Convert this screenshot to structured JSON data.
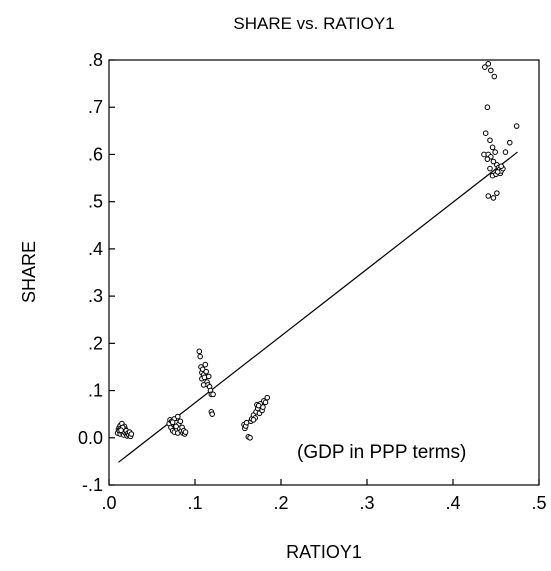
{
  "chart_data": {
    "type": "scatter",
    "title": "SHARE vs. RATIOY1",
    "xlabel": "RATIOY1",
    "ylabel": "SHARE",
    "annotation": "(GDP in PPP terms)",
    "xlim": [
      0.0,
      0.5
    ],
    "ylim": [
      -0.1,
      0.8
    ],
    "x_ticks": [
      {
        "value": 0.0,
        "label": ".0"
      },
      {
        "value": 0.1,
        "label": ".1"
      },
      {
        "value": 0.2,
        "label": ".2"
      },
      {
        "value": 0.3,
        "label": ".3"
      },
      {
        "value": 0.4,
        "label": ".4"
      },
      {
        "value": 0.5,
        "label": ".5"
      }
    ],
    "y_ticks": [
      {
        "value": -0.1,
        "label": "-.1"
      },
      {
        "value": 0.0,
        "label": "0.0"
      },
      {
        "value": 0.1,
        "label": ".1"
      },
      {
        "value": 0.2,
        "label": ".2"
      },
      {
        "value": 0.3,
        "label": ".3"
      },
      {
        "value": 0.4,
        "label": ".4"
      },
      {
        "value": 0.5,
        "label": ".5"
      },
      {
        "value": 0.6,
        "label": ".6"
      },
      {
        "value": 0.7,
        "label": ".7"
      },
      {
        "value": 0.8,
        "label": ".8"
      }
    ],
    "grid": false,
    "marker": "hollow-circle",
    "fit_line": {
      "x": [
        0.011,
        0.475
      ],
      "y": [
        -0.052,
        0.605
      ]
    },
    "points": [
      [
        0.01,
        0.01
      ],
      [
        0.011,
        0.018
      ],
      [
        0.012,
        0.022
      ],
      [
        0.012,
        0.014
      ],
      [
        0.013,
        0.026
      ],
      [
        0.013,
        0.008
      ],
      [
        0.014,
        0.02
      ],
      [
        0.015,
        0.012
      ],
      [
        0.015,
        0.03
      ],
      [
        0.016,
        0.016
      ],
      [
        0.017,
        0.006
      ],
      [
        0.018,
        0.024
      ],
      [
        0.018,
        0.012
      ],
      [
        0.019,
        0.018
      ],
      [
        0.02,
        0.008
      ],
      [
        0.02,
        0.015
      ],
      [
        0.021,
        0.004
      ],
      [
        0.022,
        0.01
      ],
      [
        0.023,
        0.006
      ],
      [
        0.024,
        0.012
      ],
      [
        0.025,
        0.003
      ],
      [
        0.026,
        0.008
      ],
      [
        0.016,
        0.022
      ],
      [
        0.014,
        0.016
      ],
      [
        0.07,
        0.03
      ],
      [
        0.071,
        0.038
      ],
      [
        0.072,
        0.022
      ],
      [
        0.073,
        0.035
      ],
      [
        0.074,
        0.015
      ],
      [
        0.075,
        0.028
      ],
      [
        0.076,
        0.04
      ],
      [
        0.076,
        0.012
      ],
      [
        0.077,
        0.025
      ],
      [
        0.078,
        0.032
      ],
      [
        0.079,
        0.018
      ],
      [
        0.08,
        0.045
      ],
      [
        0.08,
        0.01
      ],
      [
        0.081,
        0.028
      ],
      [
        0.082,
        0.02
      ],
      [
        0.083,
        0.035
      ],
      [
        0.084,
        0.014
      ],
      [
        0.085,
        0.022
      ],
      [
        0.086,
        0.01
      ],
      [
        0.087,
        0.015
      ],
      [
        0.088,
        0.008
      ],
      [
        0.089,
        0.012
      ],
      [
        0.078,
        0.024
      ],
      [
        0.074,
        0.033
      ],
      [
        0.105,
        0.183
      ],
      [
        0.106,
        0.172
      ],
      [
        0.107,
        0.15
      ],
      [
        0.108,
        0.138
      ],
      [
        0.108,
        0.125
      ],
      [
        0.109,
        0.145
      ],
      [
        0.11,
        0.133
      ],
      [
        0.111,
        0.128
      ],
      [
        0.112,
        0.155
      ],
      [
        0.113,
        0.14
      ],
      [
        0.114,
        0.118
      ],
      [
        0.115,
        0.112
      ],
      [
        0.116,
        0.13
      ],
      [
        0.117,
        0.108
      ],
      [
        0.118,
        0.1
      ],
      [
        0.119,
        0.092
      ],
      [
        0.119,
        0.055
      ],
      [
        0.12,
        0.05
      ],
      [
        0.121,
        0.092
      ],
      [
        0.11,
        0.112
      ],
      [
        0.157,
        0.028
      ],
      [
        0.158,
        0.02
      ],
      [
        0.159,
        0.025
      ],
      [
        0.16,
        0.032
      ],
      [
        0.162,
        0.002
      ],
      [
        0.164,
        0.0
      ],
      [
        0.165,
        0.035
      ],
      [
        0.166,
        0.04
      ],
      [
        0.168,
        0.048
      ],
      [
        0.17,
        0.042
      ],
      [
        0.171,
        0.055
      ],
      [
        0.172,
        0.07
      ],
      [
        0.173,
        0.062
      ],
      [
        0.175,
        0.052
      ],
      [
        0.176,
        0.072
      ],
      [
        0.178,
        0.058
      ],
      [
        0.179,
        0.065
      ],
      [
        0.18,
        0.078
      ],
      [
        0.182,
        0.075
      ],
      [
        0.184,
        0.085
      ],
      [
        0.174,
        0.068
      ],
      [
        0.168,
        0.038
      ],
      [
        0.437,
        0.785
      ],
      [
        0.441,
        0.792
      ],
      [
        0.444,
        0.778
      ],
      [
        0.448,
        0.765
      ],
      [
        0.438,
        0.645
      ],
      [
        0.44,
        0.7
      ],
      [
        0.443,
        0.63
      ],
      [
        0.436,
        0.6
      ],
      [
        0.441,
        0.6
      ],
      [
        0.444,
        0.595
      ],
      [
        0.447,
        0.585
      ],
      [
        0.449,
        0.605
      ],
      [
        0.451,
        0.578
      ],
      [
        0.453,
        0.572
      ],
      [
        0.454,
        0.568
      ],
      [
        0.455,
        0.56
      ],
      [
        0.456,
        0.565
      ],
      [
        0.458,
        0.57
      ],
      [
        0.461,
        0.605
      ],
      [
        0.466,
        0.625
      ],
      [
        0.474,
        0.66
      ],
      [
        0.441,
        0.512
      ],
      [
        0.447,
        0.508
      ],
      [
        0.451,
        0.518
      ],
      [
        0.443,
        0.57
      ],
      [
        0.446,
        0.555
      ],
      [
        0.45,
        0.558
      ],
      [
        0.452,
        0.563
      ],
      [
        0.44,
        0.59
      ],
      [
        0.446,
        0.615
      ],
      [
        0.456,
        0.575
      ]
    ]
  }
}
